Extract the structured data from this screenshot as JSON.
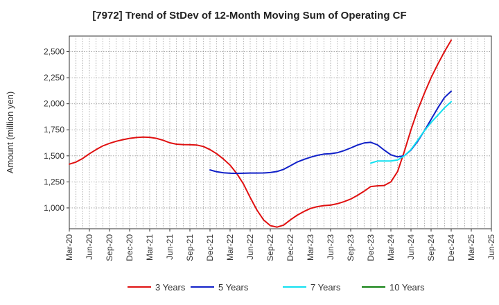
{
  "chart_data": {
    "type": "line",
    "title": "[7972]  Trend of StDev of 12-Month Moving Sum of Operating CF",
    "ylabel": "Amount (million yen)",
    "xlabel": "",
    "ylim": [
      800,
      2650
    ],
    "yticks": [
      1000,
      1250,
      1500,
      1750,
      2000,
      2250,
      2500
    ],
    "ytick_labels": [
      "1,000",
      "1,250",
      "1,500",
      "1,750",
      "2,000",
      "2,250",
      "2,500"
    ],
    "x_tick_labels": [
      "Mar-20",
      "Jun-20",
      "Sep-20",
      "Dec-20",
      "Mar-21",
      "Jun-21",
      "Sep-21",
      "Dec-21",
      "Mar-22",
      "Jun-22",
      "Sep-22",
      "Dec-22",
      "Mar-23",
      "Jun-23",
      "Sep-23",
      "Dec-23",
      "Mar-24",
      "Jun-24",
      "Sep-24",
      "Dec-24",
      "Mar-25",
      "Jun-25"
    ],
    "x_months": [
      "2020-03",
      "2020-04",
      "2020-05",
      "2020-06",
      "2020-07",
      "2020-08",
      "2020-09",
      "2020-10",
      "2020-11",
      "2020-12",
      "2021-01",
      "2021-02",
      "2021-03",
      "2021-04",
      "2021-05",
      "2021-06",
      "2021-07",
      "2021-08",
      "2021-09",
      "2021-10",
      "2021-11",
      "2021-12",
      "2022-01",
      "2022-02",
      "2022-03",
      "2022-04",
      "2022-05",
      "2022-06",
      "2022-07",
      "2022-08",
      "2022-09",
      "2022-10",
      "2022-11",
      "2022-12",
      "2023-01",
      "2023-02",
      "2023-03",
      "2023-04",
      "2023-05",
      "2023-06",
      "2023-07",
      "2023-08",
      "2023-09",
      "2023-10",
      "2023-11",
      "2023-12",
      "2024-01",
      "2024-02",
      "2024-03",
      "2024-04",
      "2024-05",
      "2024-06",
      "2024-07",
      "2024-08",
      "2024-09",
      "2024-10",
      "2024-11",
      "2024-12",
      "2025-01",
      "2025-02",
      "2025-03",
      "2025-04",
      "2025-05",
      "2025-06"
    ],
    "grid": true,
    "legend_position": "bottom",
    "series": [
      {
        "name": "3 Years",
        "color": "#e01010",
        "start": "2020-03",
        "values": [
          1420,
          1440,
          1475,
          1520,
          1560,
          1595,
          1620,
          1640,
          1655,
          1668,
          1676,
          1680,
          1678,
          1668,
          1650,
          1625,
          1612,
          1608,
          1607,
          1604,
          1590,
          1560,
          1520,
          1470,
          1410,
          1330,
          1230,
          1100,
          980,
          885,
          830,
          815,
          835,
          885,
          930,
          965,
          995,
          1012,
          1022,
          1027,
          1040,
          1060,
          1085,
          1120,
          1160,
          1205,
          1212,
          1215,
          1250,
          1350,
          1540,
          1750,
          1940,
          2100,
          2250,
          2380,
          2500,
          2610
        ]
      },
      {
        "name": "5 Years",
        "color": "#1020c8",
        "start": "2021-12",
        "values": [
          1365,
          1347,
          1337,
          1333,
          1332,
          1333,
          1335,
          1335,
          1336,
          1340,
          1350,
          1370,
          1405,
          1440,
          1465,
          1487,
          1505,
          1517,
          1520,
          1530,
          1550,
          1575,
          1603,
          1623,
          1630,
          1605,
          1555,
          1510,
          1490,
          1500,
          1555,
          1640,
          1740,
          1850,
          1960,
          2060,
          2120
        ]
      },
      {
        "name": "7 Years",
        "color": "#10e0f0",
        "start": "2023-12",
        "values": [
          1430,
          1450,
          1450,
          1450,
          1460,
          1500,
          1560,
          1650,
          1740,
          1820,
          1890,
          1960,
          2020
        ]
      },
      {
        "name": "10 Years",
        "color": "#108010",
        "start": "2023-12",
        "values": []
      }
    ]
  }
}
